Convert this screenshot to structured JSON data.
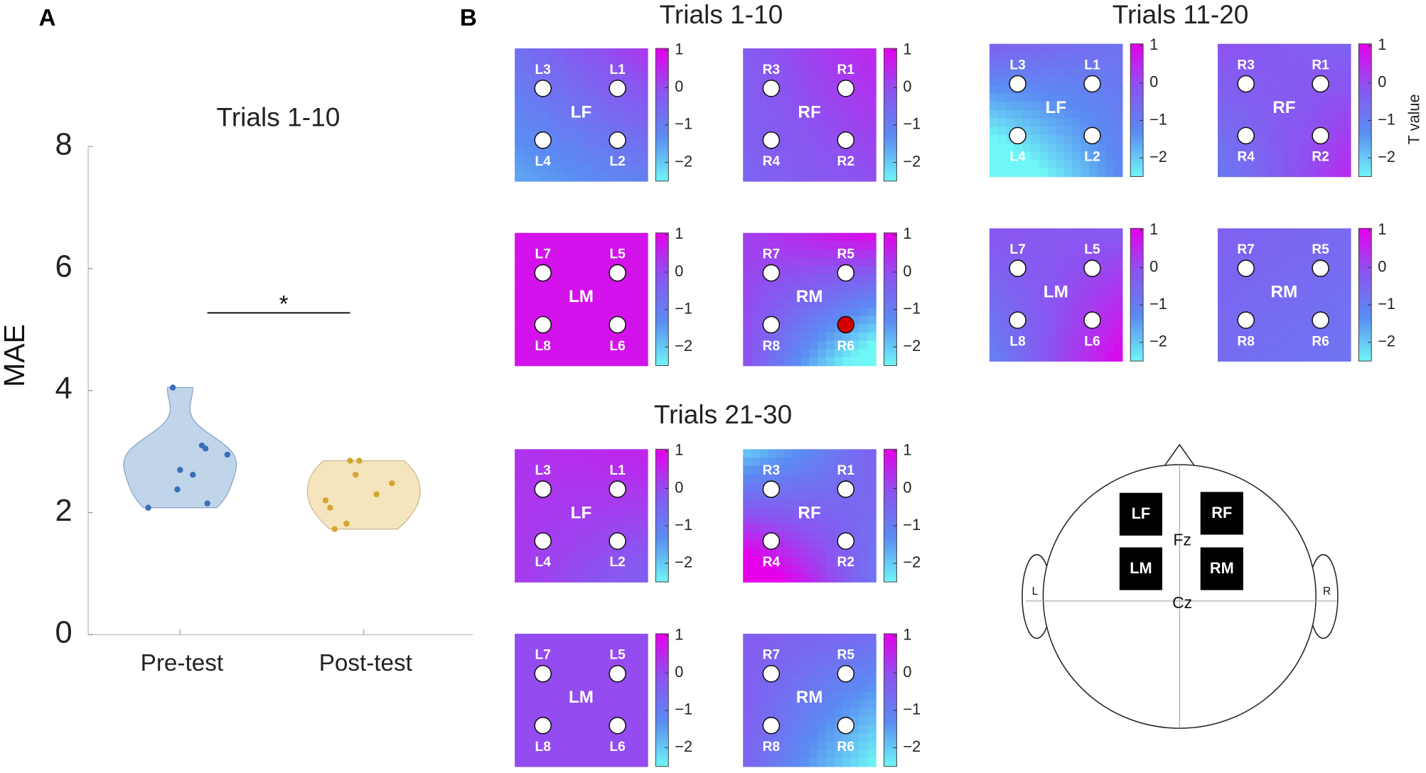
{
  "panel_labels": [
    "A",
    "B"
  ],
  "chart_data": [
    {
      "type": "violin",
      "title": "Trials 1-10",
      "ylabel": "MAE",
      "categories": [
        "Pre-test",
        "Post-test"
      ],
      "ylim": [
        0,
        8
      ],
      "yticks": [
        0,
        2,
        4,
        6,
        8
      ],
      "series": [
        {
          "color": "#3a6fb5",
          "fill": "#b9cfe8",
          "stroke": "#8aa6c8",
          "values": [
            4.05,
            3.1,
            3.05,
            2.95,
            2.7,
            2.62,
            2.38,
            2.15,
            2.08
          ]
        },
        {
          "color": "#d4a634",
          "fill": "#f4e2b6",
          "stroke": "#cbb892",
          "values": [
            2.85,
            2.85,
            2.62,
            2.48,
            2.3,
            2.2,
            2.08,
            1.82,
            1.73
          ]
        }
      ],
      "significance_label": "*"
    },
    {
      "type": "topomap",
      "clim": [
        -2.5,
        1.05
      ],
      "cticks": [
        1,
        0,
        {
          "value": -1,
          "label": "−1"
        },
        {
          "value": -2,
          "label": "−2"
        }
      ],
      "colorbar_label": "T value",
      "colormap": [
        "#6ff6f6",
        "#5a8cf2",
        "#8a55f0",
        "#e600ea"
      ],
      "highlight_color": "#d40000",
      "groups": [
        {
          "title": "Trials 1-10",
          "maps": [
            {
              "region": "LF",
              "electrodes": [
                "L3",
                "L1",
                "L4",
                "L2"
              ],
              "values": [
                -0.8,
                -0.3,
                -1.2,
                -0.8
              ]
            },
            {
              "region": "RF",
              "electrodes": [
                "R3",
                "R1",
                "R4",
                "R2"
              ],
              "values": [
                -0.2,
                0.2,
                -0.3,
                0
              ]
            },
            {
              "region": "LM",
              "electrodes": [
                "L7",
                "L5",
                "L8",
                "L6"
              ],
              "values": [
                0.8,
                0.8,
                0.8,
                0.8
              ]
            },
            {
              "region": "RM",
              "electrodes": [
                "R7",
                "R5",
                "R8",
                "R6"
              ],
              "values": [
                0,
                -0.2,
                -0.4,
                -1.5
              ],
              "significant": [
                "R6"
              ]
            }
          ]
        },
        {
          "title": "Trials 11-20",
          "maps": [
            {
              "region": "LF",
              "electrodes": [
                "L3",
                "L1",
                "L4",
                "L2"
              ],
              "values": [
                -1.2,
                -1.0,
                -2.2,
                -1.4
              ]
            },
            {
              "region": "RF",
              "electrodes": [
                "R3",
                "R1",
                "R4",
                "R2"
              ],
              "values": [
                -0.3,
                -0.2,
                -0.5,
                0
              ]
            },
            {
              "region": "LM",
              "electrodes": [
                "L7",
                "L5",
                "L8",
                "L6"
              ],
              "values": [
                -0.3,
                0,
                -0.5,
                0.3
              ]
            },
            {
              "region": "RM",
              "electrodes": [
                "R7",
                "R5",
                "R8",
                "R6"
              ],
              "values": [
                -0.5,
                -0.6,
                -0.6,
                -0.7
              ]
            }
          ]
        },
        {
          "title": "Trials 21-30",
          "maps": [
            {
              "region": "LF",
              "electrodes": [
                "L3",
                "L1",
                "L4",
                "L2"
              ],
              "values": [
                0.3,
                0.3,
                0.2,
                0
              ]
            },
            {
              "region": "RF",
              "electrodes": [
                "R3",
                "R1",
                "R4",
                "R2"
              ],
              "values": [
                -0.8,
                -0.6,
                0.4,
                -0.4
              ]
            },
            {
              "region": "LM",
              "electrodes": [
                "L7",
                "L5",
                "L8",
                "L6"
              ],
              "values": [
                0,
                0,
                0,
                0
              ]
            },
            {
              "region": "RM",
              "electrodes": [
                "R7",
                "R5",
                "R8",
                "R6"
              ],
              "values": [
                -0.5,
                -1.0,
                -0.7,
                -1.6
              ]
            }
          ]
        }
      ]
    }
  ],
  "head": {
    "regions": [
      "LF",
      "RF",
      "LM",
      "RM"
    ],
    "electrodes": [
      "Fz",
      "Cz"
    ],
    "sides": [
      "L",
      "R"
    ]
  }
}
